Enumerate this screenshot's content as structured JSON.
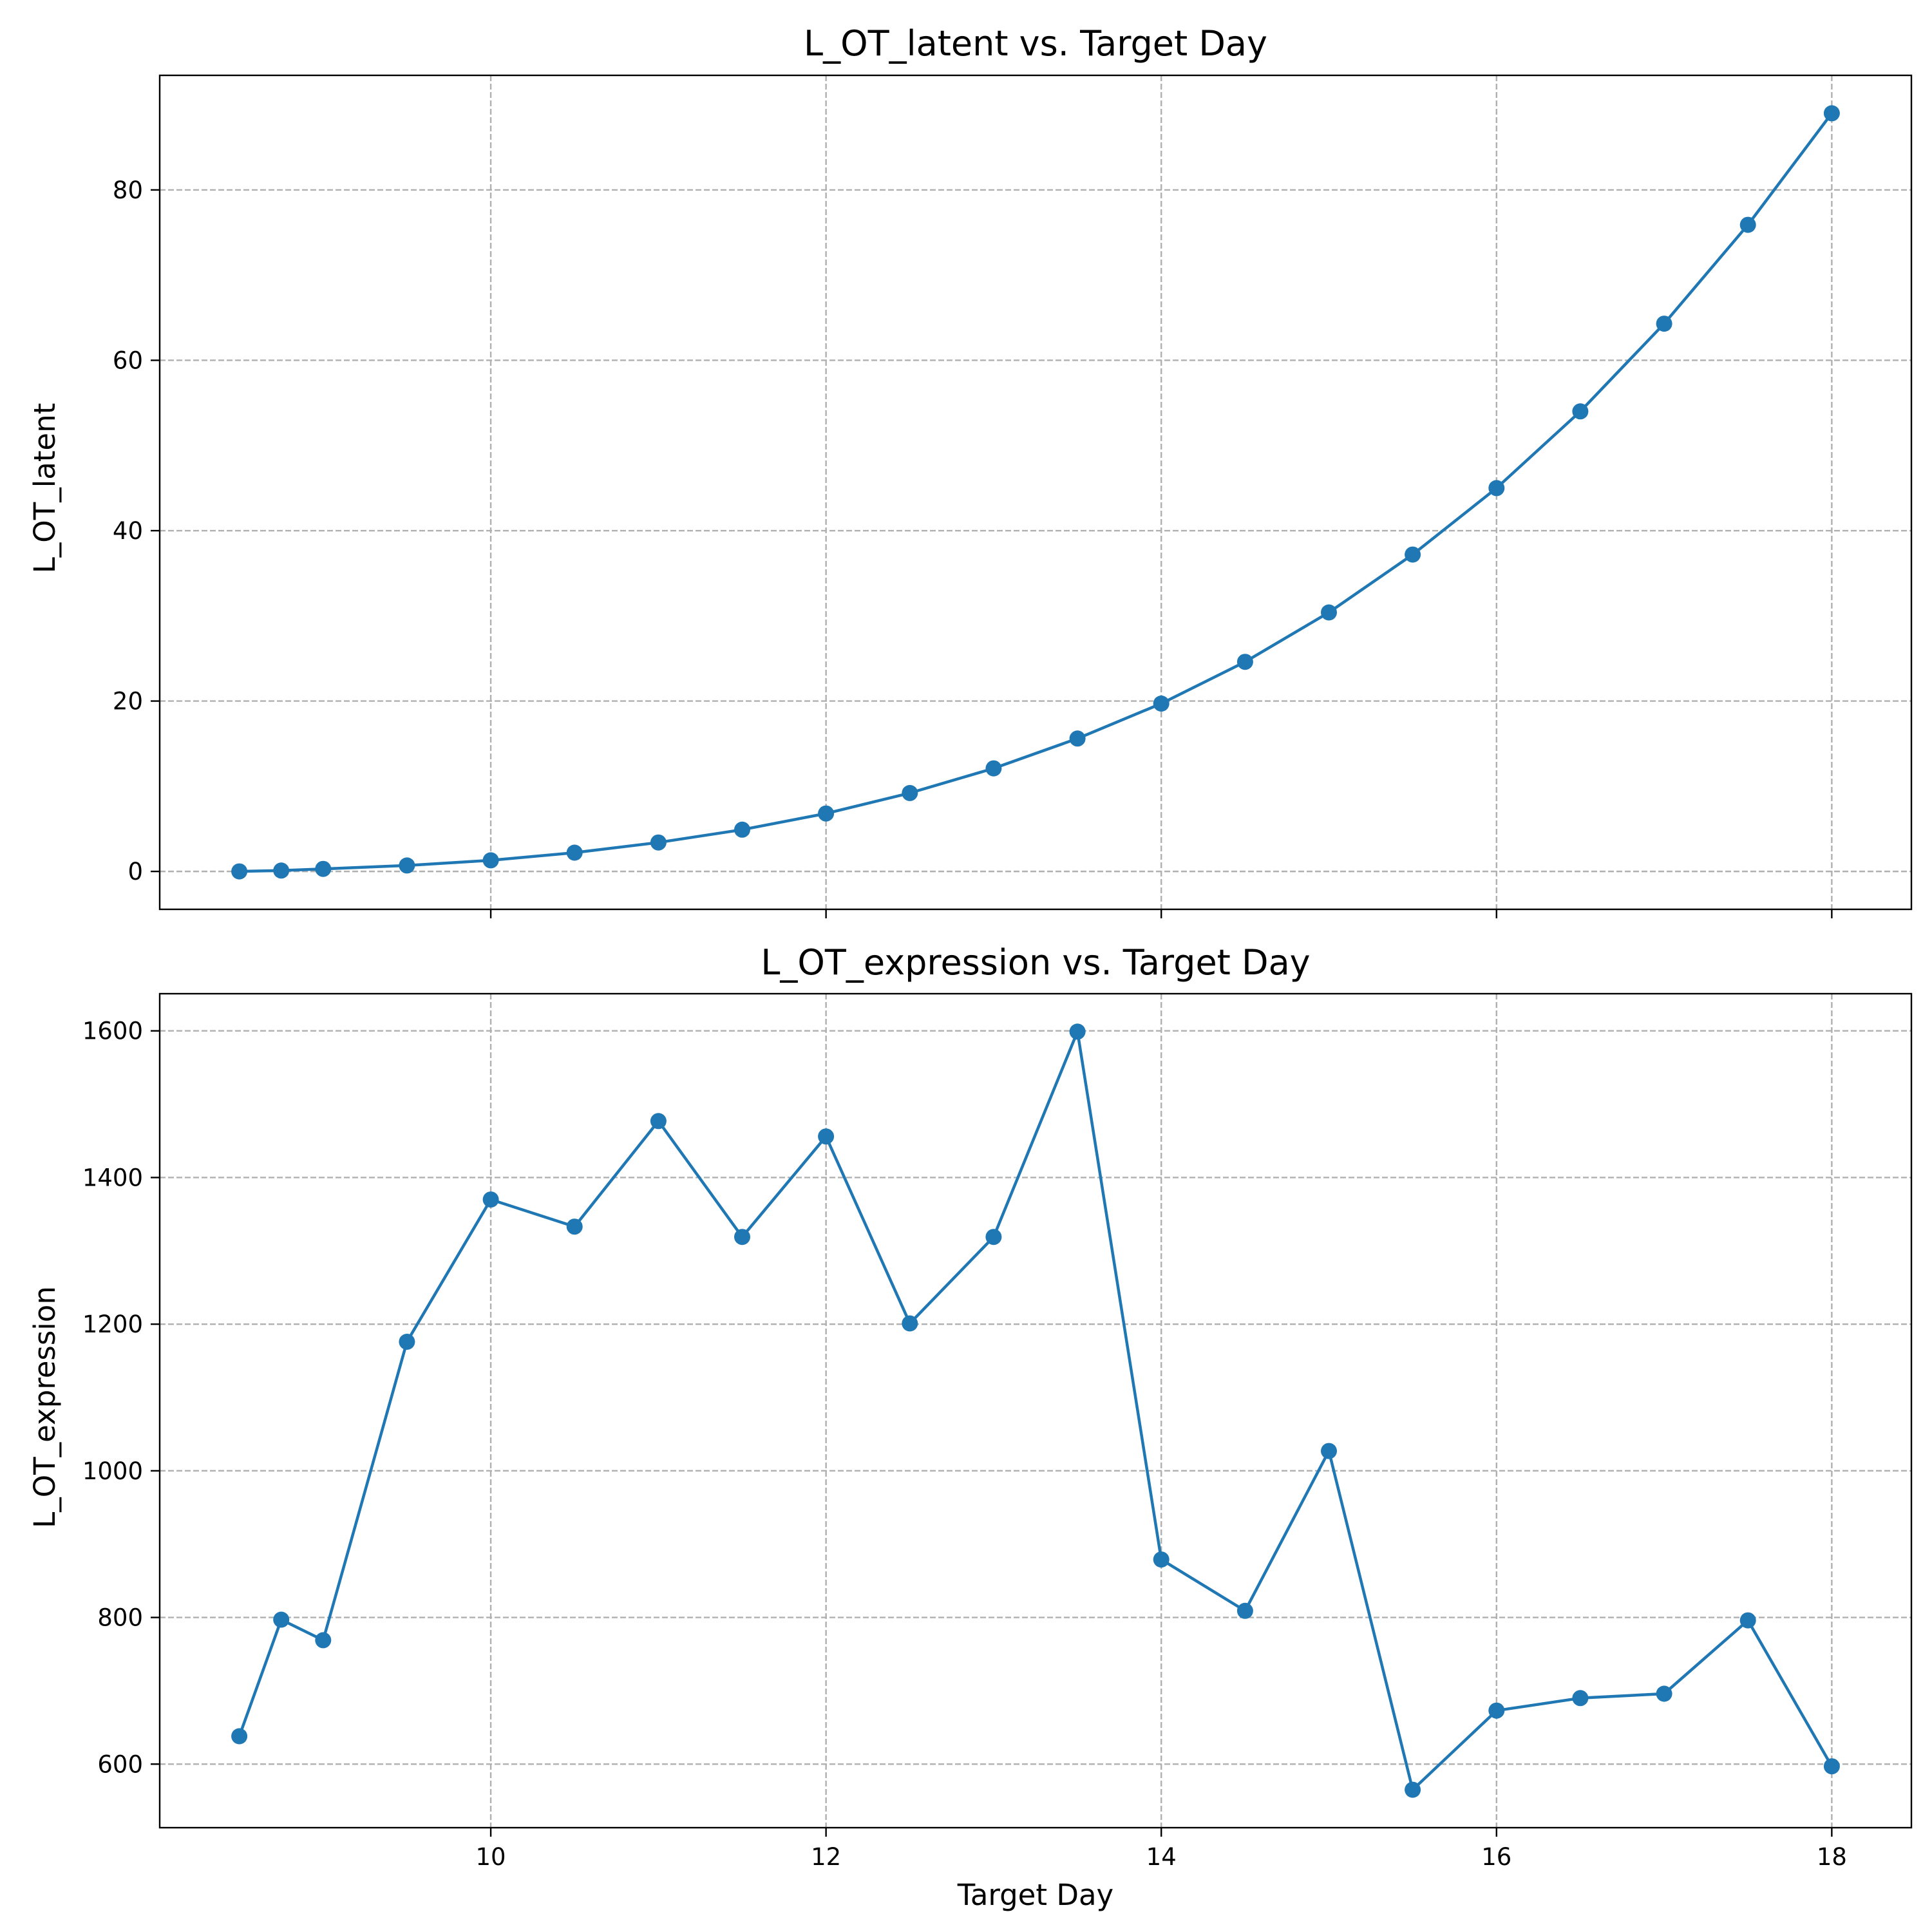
{
  "chart_data": [
    {
      "type": "line",
      "title": "L_OT_latent vs. Target Day",
      "xlabel": "",
      "ylabel": "L_OT_latent",
      "x": [
        8.5,
        8.75,
        9.0,
        9.5,
        10.0,
        10.5,
        11.0,
        11.5,
        12.0,
        12.5,
        13.0,
        13.5,
        14.0,
        14.5,
        15.0,
        15.5,
        16.0,
        16.5,
        17.0,
        17.5,
        18.0
      ],
      "series": [
        {
          "values": [
            0.0,
            0.1,
            0.3,
            0.7,
            1.3,
            2.2,
            3.4,
            4.9,
            6.8,
            9.2,
            12.1,
            15.6,
            19.7,
            24.6,
            30.4,
            37.2,
            45.0,
            54.0,
            64.3,
            75.9,
            89.0
          ],
          "color": "#1f77b4"
        }
      ],
      "xlim": [
        8.025,
        18.475
      ],
      "ylim": [
        -4.45,
        93.45
      ],
      "xticks": [
        10,
        12,
        14,
        16,
        18
      ],
      "yticks": [
        0,
        20,
        40,
        60,
        80
      ],
      "xtick_labels_shown": false,
      "grid": true,
      "grid_style": "dashed",
      "marker": "circle"
    },
    {
      "type": "line",
      "title": "L_OT_expression vs. Target Day",
      "xlabel": "Target Day",
      "ylabel": "L_OT_expression",
      "x": [
        8.5,
        8.75,
        9.0,
        9.5,
        10.0,
        10.5,
        11.0,
        11.5,
        12.0,
        12.5,
        13.0,
        13.5,
        14.0,
        14.5,
        15.0,
        15.5,
        16.0,
        16.5,
        17.0,
        17.5,
        18.0
      ],
      "series": [
        {
          "values": [
            638,
            797,
            769,
            1176,
            1370,
            1333,
            1477,
            1319,
            1456,
            1201,
            1319,
            1599,
            879,
            809,
            1027,
            565,
            673,
            690,
            696,
            796,
            597
          ],
          "color": "#1f77b4"
        }
      ],
      "xlim": [
        8.025,
        18.475
      ],
      "ylim": [
        513.3,
        1650.7
      ],
      "xticks": [
        10,
        12,
        14,
        16,
        18
      ],
      "yticks": [
        600,
        800,
        1000,
        1200,
        1400,
        1600
      ],
      "xtick_labels_shown": true,
      "grid": true,
      "grid_style": "dashed",
      "marker": "circle"
    }
  ]
}
